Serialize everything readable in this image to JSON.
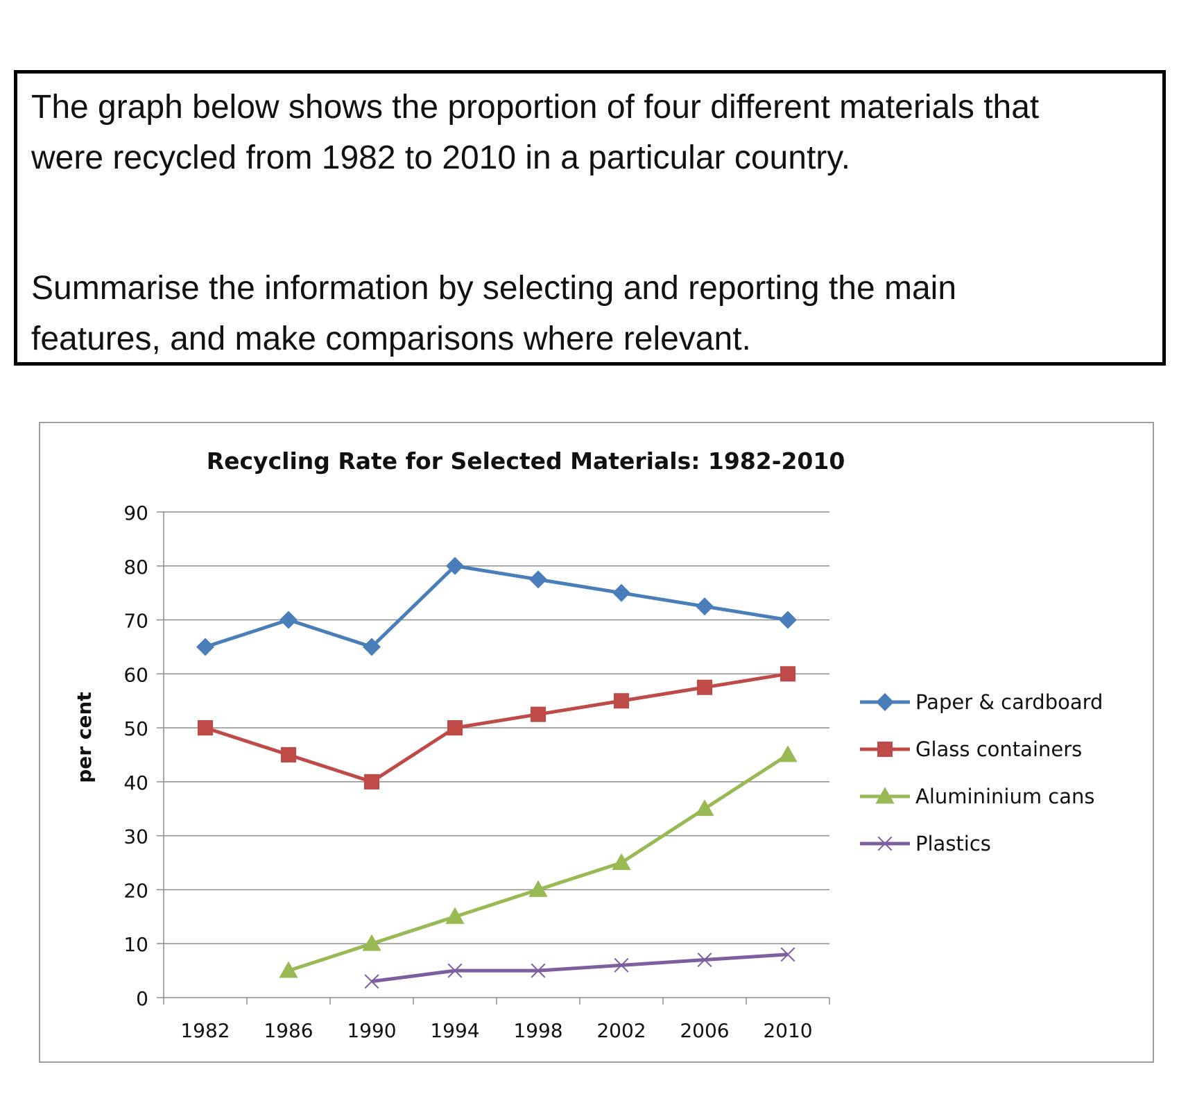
{
  "prompt": {
    "line1": "The graph below shows the proportion of four different materials that",
    "line2": "were recycled from 1982 to 2010 in a particular country.",
    "line3": "Summarise the information by selecting and reporting the main",
    "line4": "features, and make comparisons where relevant."
  },
  "chart_data": {
    "type": "line",
    "title": "Recycling Rate for Selected Materials: 1982-2010",
    "xlabel": "",
    "ylabel": "per cent",
    "categories": [
      "1982",
      "1986",
      "1990",
      "1994",
      "1998",
      "2002",
      "2006",
      "2010"
    ],
    "ylim": [
      0,
      90
    ],
    "yticks": [
      0,
      10,
      20,
      30,
      40,
      50,
      60,
      70,
      80,
      90
    ],
    "grid": true,
    "legend_position": "right",
    "series": [
      {
        "name": "Paper & cardboard",
        "color": "#4a7ebb",
        "marker": "diamond",
        "values": [
          65,
          70,
          65,
          80,
          77.5,
          75,
          72.5,
          70
        ]
      },
      {
        "name": "Glass containers",
        "color": "#be4b48",
        "marker": "square",
        "values": [
          50,
          45,
          40,
          50,
          52.5,
          55,
          57.5,
          60
        ]
      },
      {
        "name": "Aluminium cans",
        "color": "#98b954",
        "marker": "triangle",
        "values": [
          null,
          5,
          10,
          15,
          20,
          25,
          35,
          45
        ]
      },
      {
        "name": "Plastics",
        "color": "#7d5fa0",
        "marker": "x",
        "values": [
          null,
          null,
          3,
          5,
          5,
          6,
          7,
          8
        ]
      }
    ],
    "legend_labels": [
      "Paper & cardboard",
      "Glass containers",
      "Alumininium cans",
      "Plastics"
    ]
  }
}
